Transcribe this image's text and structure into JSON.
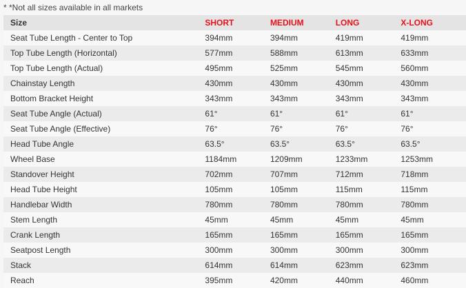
{
  "note": "* *Not all sizes available in all markets",
  "header": {
    "label": "Size",
    "sizes": [
      "SHORT",
      "MEDIUM",
      "LONG",
      "X-LONG"
    ]
  },
  "colors": {
    "size_header": "#e8101a"
  },
  "rows": [
    {
      "label": "Seat Tube Length - Center to Top",
      "values": [
        "394mm",
        "394mm",
        "419mm",
        "419mm"
      ]
    },
    {
      "label": "Top Tube Length (Horizontal)",
      "values": [
        "577mm",
        "588mm",
        "613mm",
        "633mm"
      ]
    },
    {
      "label": "Top Tube Length (Actual)",
      "values": [
        "495mm",
        "525mm",
        "545mm",
        "560mm"
      ]
    },
    {
      "label": "Chainstay Length",
      "values": [
        "430mm",
        "430mm",
        "430mm",
        "430mm"
      ]
    },
    {
      "label": "Bottom Bracket Height",
      "values": [
        "343mm",
        "343mm",
        "343mm",
        "343mm"
      ]
    },
    {
      "label": "Seat Tube Angle (Actual)",
      "values": [
        "61°",
        "61°",
        "61°",
        "61°"
      ]
    },
    {
      "label": "Seat Tube Angle (Effective)",
      "values": [
        "76°",
        "76°",
        "76°",
        "76°"
      ]
    },
    {
      "label": "Head Tube Angle",
      "values": [
        "63.5°",
        "63.5°",
        "63.5°",
        "63.5°"
      ]
    },
    {
      "label": "Wheel Base",
      "values": [
        "1184mm",
        "1209mm",
        "1233mm",
        "1253mm"
      ]
    },
    {
      "label": "Standover Height",
      "values": [
        "702mm",
        "707mm",
        "712mm",
        "718mm"
      ]
    },
    {
      "label": "Head Tube Height",
      "values": [
        "105mm",
        "105mm",
        "115mm",
        "115mm"
      ]
    },
    {
      "label": "Handlebar Width",
      "values": [
        "780mm",
        "780mm",
        "780mm",
        "780mm"
      ]
    },
    {
      "label": "Stem Length",
      "values": [
        "45mm",
        "45mm",
        "45mm",
        "45mm"
      ]
    },
    {
      "label": "Crank Length",
      "values": [
        "165mm",
        "165mm",
        "165mm",
        "165mm"
      ]
    },
    {
      "label": "Seatpost Length",
      "values": [
        "300mm",
        "300mm",
        "300mm",
        "300mm"
      ]
    },
    {
      "label": "Stack",
      "values": [
        "614mm",
        "614mm",
        "623mm",
        "623mm"
      ]
    },
    {
      "label": "Reach",
      "values": [
        "395mm",
        "420mm",
        "440mm",
        "460mm"
      ]
    }
  ]
}
